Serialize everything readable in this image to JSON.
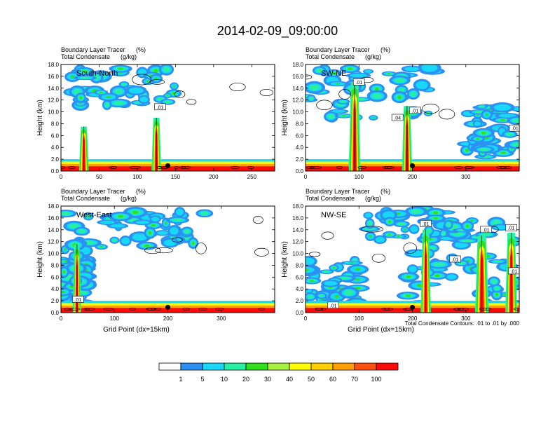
{
  "figure": {
    "title": "2014-02-09_09:00:00",
    "footnote": "Total Condensate Contours: .01 to .01 by .000"
  },
  "colorbar": {
    "colors": [
      "#ffffff",
      "#2c8ff2",
      "#18d8f8",
      "#28f0a0",
      "#30e020",
      "#a8f040",
      "#ffff00",
      "#ffd000",
      "#ffa000",
      "#ff5010",
      "#ff0a0a"
    ],
    "labels": [
      "1",
      "5",
      "10",
      "20",
      "30",
      "40",
      "50",
      "60",
      "70",
      "100"
    ]
  },
  "chart_data": [
    {
      "type": "cross-section",
      "panel_label": "South-North",
      "left_title_1": "Boundary Layer Tracer",
      "left_title_2": "Total Condensate",
      "right_title_1": "(%)",
      "right_title_2": "(g/kg)",
      "ylabel": "Height (km)",
      "xlabel": "",
      "xlim": [
        0,
        280
      ],
      "ylim": [
        0,
        18
      ],
      "xticks": [
        "0",
        "50",
        "100",
        "150",
        "200",
        "250"
      ],
      "xtick_values": [
        0,
        50,
        100,
        150,
        200,
        250
      ],
      "yticks": [
        "0.0",
        "2.0",
        "4.0",
        "6.0",
        "8.0",
        "10.0",
        "12.0",
        "14.0",
        "16.0",
        "18.0"
      ],
      "marker_x": 140,
      "contour_labels": [
        {
          "text": ".01",
          "x": 130,
          "y": 10.8
        }
      ],
      "plumes": [
        {
          "x": 30,
          "top": 7.5,
          "w": 4
        },
        {
          "x": 125,
          "top": 9,
          "w": 4
        }
      ]
    },
    {
      "type": "cross-section",
      "panel_label": "SW-NE",
      "left_title_1": "Boundary Layer Tracer",
      "left_title_2": "Total Condensate",
      "right_title_1": "(%)",
      "right_title_2": "(g/kg)",
      "ylabel": "Height (km)",
      "xlabel": "",
      "xlim": [
        0,
        400
      ],
      "ylim": [
        0,
        18
      ],
      "xticks": [
        "0",
        "100",
        "200",
        "300"
      ],
      "xtick_values": [
        0,
        100,
        200,
        300
      ],
      "yticks": [
        "0.0",
        "2.0",
        "4.0",
        "6.0",
        "8.0",
        "10.0",
        "12.0",
        "14.0",
        "16.0",
        "18.0"
      ],
      "marker_x": 200,
      "contour_labels": [
        {
          "text": ".01",
          "x": 100,
          "y": 15
        },
        {
          "text": ".04",
          "x": 172,
          "y": 9
        },
        {
          "text": ".01",
          "x": 205,
          "y": 10.2
        },
        {
          "text": ".01",
          "x": 392,
          "y": 7.2
        }
      ],
      "plumes": [
        {
          "x": 92,
          "top": 15,
          "w": 7
        },
        {
          "x": 190,
          "top": 11,
          "w": 6
        }
      ]
    },
    {
      "type": "cross-section",
      "panel_label": "West-East",
      "left_title_1": "Boundary Layer Tracer",
      "left_title_2": "Total Condensate",
      "right_title_1": "(%)",
      "right_title_2": "(g/kg)",
      "ylabel": "Height (km)",
      "xlabel": "Grid Point (dx=15km)",
      "xlim": [
        0,
        400
      ],
      "ylim": [
        0,
        18
      ],
      "xticks": [
        "0",
        "100",
        "200",
        "300"
      ],
      "xtick_values": [
        0,
        100,
        200,
        300
      ],
      "yticks": [
        "0.0",
        "2.0",
        "4.0",
        "6.0",
        "8.0",
        "10.0",
        "12.0",
        "14.0",
        "16.0",
        "18.0"
      ],
      "marker_x": 200,
      "contour_labels": [
        {
          "text": ".01",
          "x": 32,
          "y": 2.2
        }
      ],
      "plumes": [
        {
          "x": 30,
          "top": 11.5,
          "w": 5
        }
      ]
    },
    {
      "type": "cross-section",
      "panel_label": "NW-SE",
      "left_title_1": "Boundary Layer Tracer",
      "left_title_2": "Total Condensate",
      "right_title_1": "(%)",
      "right_title_2": "(g/kg)",
      "ylabel": "Height (km)",
      "xlabel": "Grid Point (dx=15km)",
      "xlim": [
        0,
        400
      ],
      "ylim": [
        0,
        18
      ],
      "xticks": [
        "0",
        "100",
        "200",
        "300"
      ],
      "xtick_values": [
        0,
        100,
        200,
        300
      ],
      "yticks": [
        "0.0",
        "2.0",
        "4.0",
        "6.0",
        "8.0",
        "10.0",
        "12.0",
        "14.0",
        "16.0",
        "18.0"
      ],
      "marker_x": 200,
      "contour_labels": [
        {
          "text": ".01",
          "x": 225,
          "y": 15
        },
        {
          "text": ".01",
          "x": 338,
          "y": 14
        },
        {
          "text": ".01",
          "x": 385,
          "y": 14.3
        },
        {
          "text": ".01",
          "x": 280,
          "y": 9
        },
        {
          "text": ".01",
          "x": 390,
          "y": 7
        },
        {
          "text": ".01",
          "x": 52,
          "y": 1.2
        }
      ],
      "plumes": [
        {
          "x": 225,
          "top": 14,
          "w": 6
        },
        {
          "x": 330,
          "top": 13,
          "w": 8
        },
        {
          "x": 385,
          "top": 13.5,
          "w": 7
        }
      ]
    }
  ]
}
